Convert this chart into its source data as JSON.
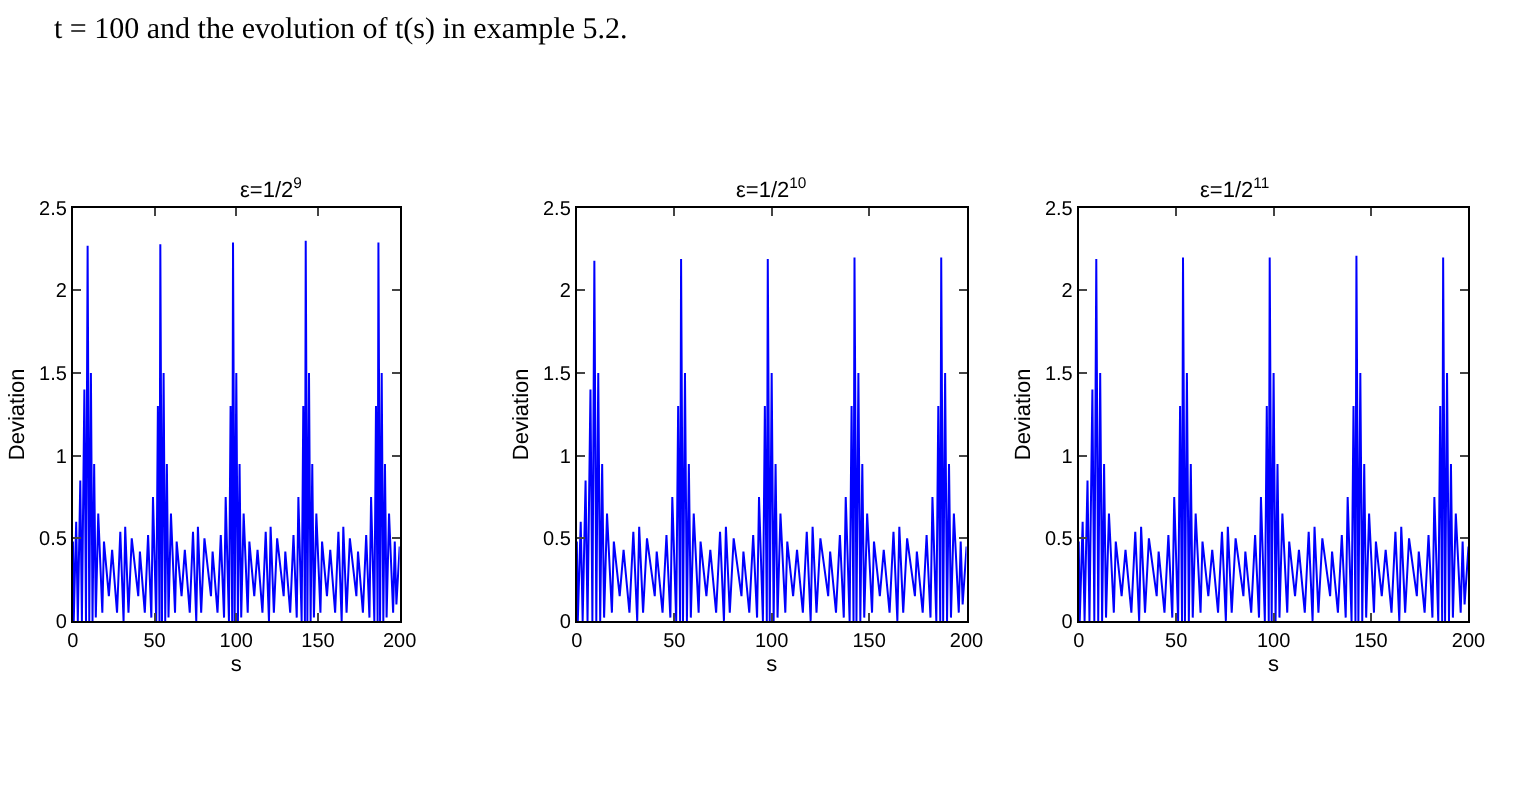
{
  "chart_data": [
    {
      "type": "line",
      "title": "ε=1/2$^{9}$",
      "xlabel": "s",
      "ylabel": "Deviation",
      "annotations": [
        "t = 100 and the evolution of t(s) in example 5.2."
      ],
      "xlim": [
        0,
        200
      ],
      "ylim": [
        0,
        2.5
      ],
      "xticks": [
        0,
        50,
        100,
        150,
        200
      ],
      "yticks": [
        0,
        0.5,
        1,
        1.5,
        2,
        2.5
      ],
      "x": [
        0,
        0.5,
        2,
        3,
        4.5,
        5.5,
        7,
        8,
        9,
        10,
        11,
        12,
        13,
        14,
        15.5,
        18,
        19,
        22,
        24,
        27,
        29,
        31,
        32,
        34,
        36,
        40,
        41,
        44,
        46,
        48,
        49,
        51,
        52,
        53,
        53.5,
        54.5,
        55.5,
        56.5,
        57.5,
        58.5,
        60,
        62.5,
        63.5,
        66.5,
        68.5,
        71.5,
        73.5,
        75.5,
        76.5,
        78.5,
        80.5,
        84.5,
        85.5,
        88.5,
        90.5,
        92.5,
        93.5,
        95.5,
        96.5,
        97.5,
        98,
        99,
        100,
        101,
        102,
        103,
        104.5,
        107,
        108,
        111,
        113,
        116,
        118,
        120,
        121,
        123,
        125,
        129,
        130,
        133,
        135,
        137,
        138,
        140,
        141,
        142,
        142.5,
        143.5,
        144.5,
        145.5,
        146.5,
        147.5,
        149,
        151.5,
        152.5,
        155.5,
        157.5,
        160.5,
        162.5,
        164.5,
        165.5,
        167.5,
        169.5,
        173.5,
        174.5,
        177.5,
        179.5,
        181.5,
        182.5,
        184.5,
        185.5,
        186.5,
        187,
        188,
        189,
        190,
        191,
        192,
        193.5,
        196,
        197,
        198,
        200
      ],
      "series": [
        {
          "color": "#0000ff",
          "values": [
            0.48,
            0,
            0.6,
            0,
            0.85,
            0,
            1.4,
            0,
            2.27,
            0,
            1.5,
            0,
            0.95,
            0.02,
            0.65,
            0.05,
            0.48,
            0.15,
            0.43,
            0.05,
            0.54,
            0,
            0.57,
            0.05,
            0.5,
            0.15,
            0.42,
            0.05,
            0.52,
            0.02,
            0.75,
            0,
            1.3,
            0,
            2.28,
            0,
            1.5,
            0,
            0.95,
            0.02,
            0.65,
            0.05,
            0.48,
            0.15,
            0.43,
            0.05,
            0.54,
            0,
            0.57,
            0.05,
            0.5,
            0.15,
            0.42,
            0.05,
            0.52,
            0.02,
            0.75,
            0,
            1.3,
            0,
            2.29,
            0,
            1.5,
            0,
            0.95,
            0.02,
            0.65,
            0.05,
            0.48,
            0.15,
            0.43,
            0.05,
            0.54,
            0,
            0.57,
            0.05,
            0.5,
            0.15,
            0.42,
            0.05,
            0.52,
            0.02,
            0.75,
            0,
            1.3,
            0,
            2.3,
            0,
            1.5,
            0,
            0.95,
            0.02,
            0.65,
            0.05,
            0.48,
            0.15,
            0.43,
            0.05,
            0.54,
            0,
            0.57,
            0.05,
            0.5,
            0.15,
            0.42,
            0.05,
            0.52,
            0.02,
            0.75,
            0,
            1.3,
            0,
            2.29,
            0,
            1.5,
            0,
            0.95,
            0.02,
            0.65,
            0.05,
            0.48,
            0.1,
            0.45
          ]
        }
      ]
    },
    {
      "type": "line",
      "title": "ε=1/2$^{10}$",
      "xlabel": "s",
      "ylabel": "Deviation",
      "xlim": [
        0,
        200
      ],
      "ylim": [
        0,
        2.5
      ],
      "xticks": [
        0,
        50,
        100,
        150,
        200
      ],
      "yticks": [
        0,
        0.5,
        1,
        1.5,
        2,
        2.5
      ],
      "x": [
        0,
        0.5,
        2,
        3,
        4.5,
        5.5,
        7,
        8,
        9,
        10,
        11,
        12,
        13,
        14,
        15.5,
        18,
        19,
        22,
        24,
        27,
        29,
        31,
        32,
        34,
        36,
        40,
        41,
        44,
        46,
        48,
        49,
        51,
        52,
        53,
        53.5,
        54.5,
        55.5,
        56.5,
        57.5,
        58.5,
        60,
        62.5,
        63.5,
        66.5,
        68.5,
        71.5,
        73.5,
        75.5,
        76.5,
        78.5,
        80.5,
        84.5,
        85.5,
        88.5,
        90.5,
        92.5,
        93.5,
        95.5,
        96.5,
        97.5,
        98,
        99,
        100,
        101,
        102,
        103,
        104.5,
        107,
        108,
        111,
        113,
        116,
        118,
        120,
        121,
        123,
        125,
        129,
        130,
        133,
        135,
        137,
        138,
        140,
        141,
        142,
        142.5,
        143.5,
        144.5,
        145.5,
        146.5,
        147.5,
        149,
        151.5,
        152.5,
        155.5,
        157.5,
        160.5,
        162.5,
        164.5,
        165.5,
        167.5,
        169.5,
        173.5,
        174.5,
        177.5,
        179.5,
        181.5,
        182.5,
        184.5,
        185.5,
        186.5,
        187,
        188,
        189,
        190,
        191,
        192,
        193.5,
        196,
        197,
        198,
        200
      ],
      "series": [
        {
          "color": "#0000ff",
          "values": [
            0.48,
            0,
            0.6,
            0,
            0.85,
            0,
            1.4,
            0,
            2.18,
            0,
            1.5,
            0,
            0.95,
            0.02,
            0.65,
            0.05,
            0.48,
            0.15,
            0.43,
            0.05,
            0.54,
            0,
            0.57,
            0.05,
            0.5,
            0.15,
            0.42,
            0.05,
            0.52,
            0.02,
            0.75,
            0,
            1.3,
            0,
            2.19,
            0,
            1.5,
            0,
            0.95,
            0.02,
            0.65,
            0.05,
            0.48,
            0.15,
            0.43,
            0.05,
            0.54,
            0,
            0.57,
            0.05,
            0.5,
            0.15,
            0.42,
            0.05,
            0.52,
            0.02,
            0.75,
            0,
            1.3,
            0,
            2.19,
            0,
            1.5,
            0,
            0.95,
            0.02,
            0.65,
            0.05,
            0.48,
            0.15,
            0.43,
            0.05,
            0.54,
            0,
            0.57,
            0.05,
            0.5,
            0.15,
            0.42,
            0.05,
            0.52,
            0.02,
            0.75,
            0,
            1.3,
            0,
            2.2,
            0,
            1.5,
            0,
            0.95,
            0.02,
            0.65,
            0.05,
            0.48,
            0.15,
            0.43,
            0.05,
            0.54,
            0,
            0.57,
            0.05,
            0.5,
            0.15,
            0.42,
            0.05,
            0.52,
            0.02,
            0.75,
            0,
            1.3,
            0,
            2.2,
            0,
            1.5,
            0,
            0.95,
            0.02,
            0.65,
            0.05,
            0.48,
            0.1,
            0.45
          ]
        }
      ]
    },
    {
      "type": "line",
      "title": "ε=1/2$^{11}$",
      "xlabel": "s",
      "ylabel": "Deviation",
      "xlim": [
        0,
        200
      ],
      "ylim": [
        0,
        2.5
      ],
      "xticks": [
        0,
        50,
        100,
        150,
        200
      ],
      "yticks": [
        0,
        0.5,
        1,
        1.5,
        2,
        2.5
      ],
      "x": [
        0,
        0.5,
        2,
        3,
        4.5,
        5.5,
        7,
        8,
        9,
        10,
        11,
        12,
        13,
        14,
        15.5,
        18,
        19,
        22,
        24,
        27,
        29,
        31,
        32,
        34,
        36,
        40,
        41,
        44,
        46,
        48,
        49,
        51,
        52,
        53,
        53.5,
        54.5,
        55.5,
        56.5,
        57.5,
        58.5,
        60,
        62.5,
        63.5,
        66.5,
        68.5,
        71.5,
        73.5,
        75.5,
        76.5,
        78.5,
        80.5,
        84.5,
        85.5,
        88.5,
        90.5,
        92.5,
        93.5,
        95.5,
        96.5,
        97.5,
        98,
        99,
        100,
        101,
        102,
        103,
        104.5,
        107,
        108,
        111,
        113,
        116,
        118,
        120,
        121,
        123,
        125,
        129,
        130,
        133,
        135,
        137,
        138,
        140,
        141,
        142,
        142.5,
        143.5,
        144.5,
        145.5,
        146.5,
        147.5,
        149,
        151.5,
        152.5,
        155.5,
        157.5,
        160.5,
        162.5,
        164.5,
        165.5,
        167.5,
        169.5,
        173.5,
        174.5,
        177.5,
        179.5,
        181.5,
        182.5,
        184.5,
        185.5,
        186.5,
        187,
        188,
        189,
        190,
        191,
        192,
        193.5,
        196,
        197,
        198,
        200
      ],
      "series": [
        {
          "color": "#0000ff",
          "values": [
            0.48,
            0,
            0.6,
            0,
            0.85,
            0,
            1.4,
            0,
            2.19,
            0,
            1.5,
            0,
            0.95,
            0.02,
            0.65,
            0.05,
            0.48,
            0.15,
            0.43,
            0.05,
            0.54,
            0,
            0.57,
            0.05,
            0.5,
            0.15,
            0.42,
            0.05,
            0.52,
            0.02,
            0.75,
            0,
            1.3,
            0,
            2.2,
            0,
            1.5,
            0,
            0.95,
            0.02,
            0.65,
            0.05,
            0.48,
            0.15,
            0.43,
            0.05,
            0.54,
            0,
            0.57,
            0.05,
            0.5,
            0.15,
            0.42,
            0.05,
            0.52,
            0.02,
            0.75,
            0,
            1.3,
            0,
            2.2,
            0,
            1.5,
            0,
            0.95,
            0.02,
            0.65,
            0.05,
            0.48,
            0.15,
            0.43,
            0.05,
            0.54,
            0,
            0.57,
            0.05,
            0.5,
            0.15,
            0.42,
            0.05,
            0.52,
            0.02,
            0.75,
            0,
            1.3,
            0,
            2.21,
            0,
            1.5,
            0,
            0.95,
            0.02,
            0.65,
            0.05,
            0.48,
            0.15,
            0.43,
            0.05,
            0.54,
            0,
            0.57,
            0.05,
            0.5,
            0.15,
            0.42,
            0.05,
            0.52,
            0.02,
            0.75,
            0,
            1.3,
            0,
            2.2,
            0,
            1.5,
            0,
            0.95,
            0.02,
            0.65,
            0.05,
            0.48,
            0.1,
            0.45
          ]
        }
      ]
    }
  ]
}
